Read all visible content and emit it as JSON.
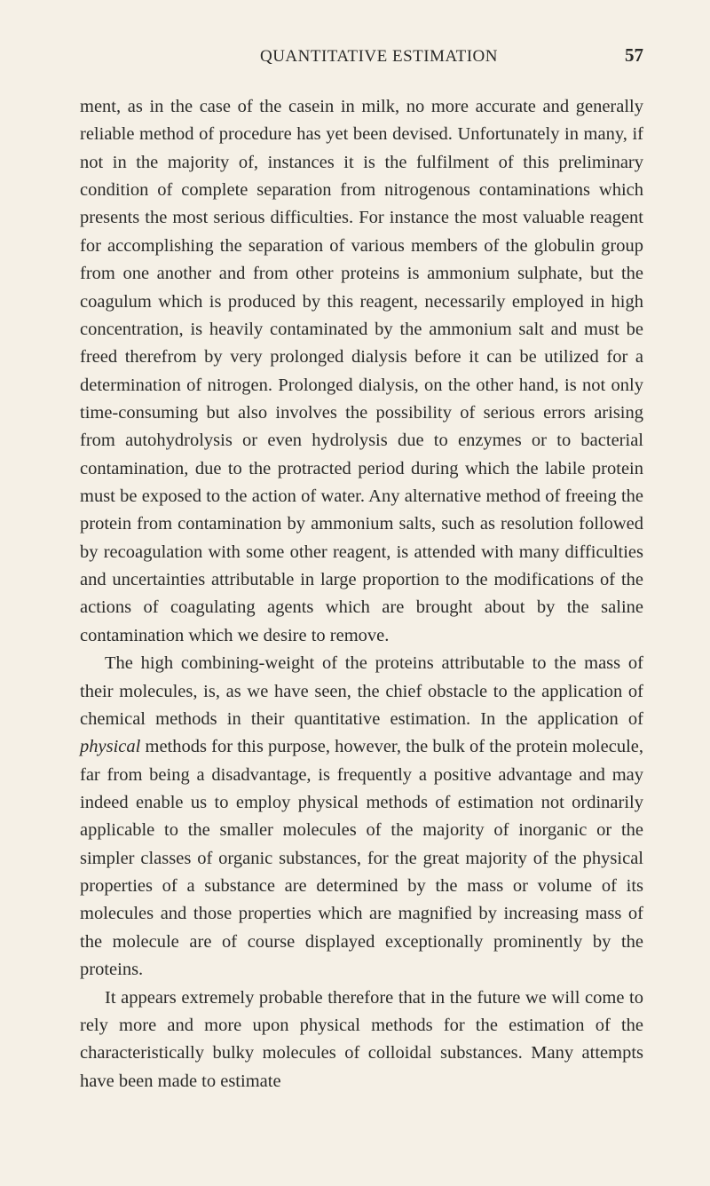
{
  "page": {
    "header": "QUANTITATIVE ESTIMATION",
    "pageNumber": "57",
    "background_color": "#f5f0e6",
    "text_color": "#2a2a28",
    "font_family": "Times New Roman",
    "body_fontsize": 20.5,
    "header_fontsize": 19,
    "pagenum_fontsize": 21,
    "line_height": 1.53
  },
  "paragraphs": {
    "p1_a": "ment, as in the case of the casein in milk, no more accurate and generally reliable method of procedure has yet been devised. Unfortunately in many, if not in the majority of, instances it is the fulfilment of this preliminary condition of complete separa­tion from nitrogenous contaminations which presents the most serious difficulties. For instance the most valuable reagent for accomplishing the separation of various members of the globulin group from one another and from other proteins is ammonium sulphate, but the coagulum which is produced by this reagent, necessarily employed in high concentration, is heavily contami­nated by the ammonium salt and must be freed therefrom by very prolonged dialysis before it can be utilized for a determination of nitrogen. Prolonged dialysis, on the other hand, is not only time-consuming but also involves the possibility of serious errors arising from autohydrolysis or even hydrolysis due to enzymes or to bacterial contamination, due to the protracted period during which the labile protein must be exposed to the action of water. Any alternative method of freeing the protein from contamina­tion by ammonium salts, such as resolution followed by recoagu­lation with some other reagent, is attended with many difficulties and uncertainties attributable in large proportion to the modi­fications of the actions of coagulating agents which are brought about by the saline contamination which we desire to remove.",
    "p2_a": "The high combining-weight of the proteins attributable to the mass of their molecules, is, as we have seen, the chief obstacle to the application of chemical methods in their quantitative estimation. In the application of ",
    "p2_italic": "physical",
    "p2_b": " methods for this pur­pose, however, the bulk of the protein molecule, far from being a disadvantage, is frequently a positive advantage and may indeed enable us to employ physical methods of estimation not ordi­narily applicable to the smaller molecules of the majority of inorganic or the simpler classes of organic substances, for the great majority of the physical properties of a substance are determined by the mass or volume of its molecules and those properties which are magnified by increasing mass of the molecule are of course displayed exceptionally prominently by the proteins.",
    "p3_a": "It appears extremely probable therefore that in the future we will come to rely more and more upon physical methods for the estimation of the characteristically bulky molecules of col­loidal substances. Many attempts have been made to estimate"
  }
}
